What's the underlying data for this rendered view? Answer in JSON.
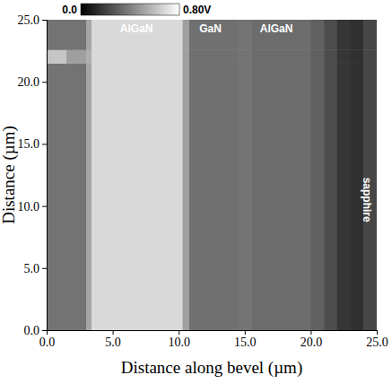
{
  "chart_data": {
    "type": "heatmap",
    "xlabel": "Distance along bevel  (µm)",
    "ylabel": "Distance  (µm)",
    "xlim": [
      0,
      25
    ],
    "ylim": [
      0,
      25
    ],
    "xticks": [
      {
        "value": 0,
        "label": "0.0"
      },
      {
        "value": 5,
        "label": "5.0"
      },
      {
        "value": 10,
        "label": "10.0"
      },
      {
        "value": 15,
        "label": "15.0"
      },
      {
        "value": 20,
        "label": "20.0"
      },
      {
        "value": 25,
        "label": "25.0"
      }
    ],
    "yticks": [
      {
        "value": 0,
        "label": "0.0"
      },
      {
        "value": 5,
        "label": "5.0"
      },
      {
        "value": 10,
        "label": "10.0"
      },
      {
        "value": 15,
        "label": "15.0"
      },
      {
        "value": 20,
        "label": "20.0"
      },
      {
        "value": 25,
        "label": "25.0"
      }
    ],
    "x_edges": [
      0,
      1.5,
      3.0,
      3.4,
      10.3,
      10.8,
      14.5,
      15.5,
      20,
      21,
      22,
      23,
      24,
      25
    ],
    "y_edges": [
      0,
      21.5,
      22.6,
      25
    ],
    "cells": [
      [
        0.36,
        0.36,
        0.52,
        0.68,
        0.5,
        0.35,
        0.36,
        0.34,
        0.3,
        0.24,
        0.17,
        0.15,
        0.22
      ],
      [
        0.62,
        0.5,
        0.55,
        0.68,
        0.5,
        0.35,
        0.36,
        0.34,
        0.3,
        0.24,
        0.17,
        0.15,
        0.22
      ],
      [
        0.36,
        0.36,
        0.52,
        0.68,
        0.5,
        0.35,
        0.36,
        0.34,
        0.3,
        0.24,
        0.17,
        0.15,
        0.22
      ]
    ],
    "colorbar": {
      "range": [
        0,
        0.8
      ],
      "ticks": [
        {
          "value": 0,
          "label": "0.0"
        },
        {
          "value": 0.8,
          "label": "0.80V"
        }
      ]
    },
    "annotations": [
      {
        "text": "AlGaN",
        "x": 6.8,
        "y": 24.2
      },
      {
        "text": "GaN",
        "x": 12.4,
        "y": 24.2
      },
      {
        "text": "AlGaN",
        "x": 17.4,
        "y": 24.2
      },
      {
        "text": "sapphire",
        "x": 24.2,
        "y": 10.5
      }
    ]
  }
}
